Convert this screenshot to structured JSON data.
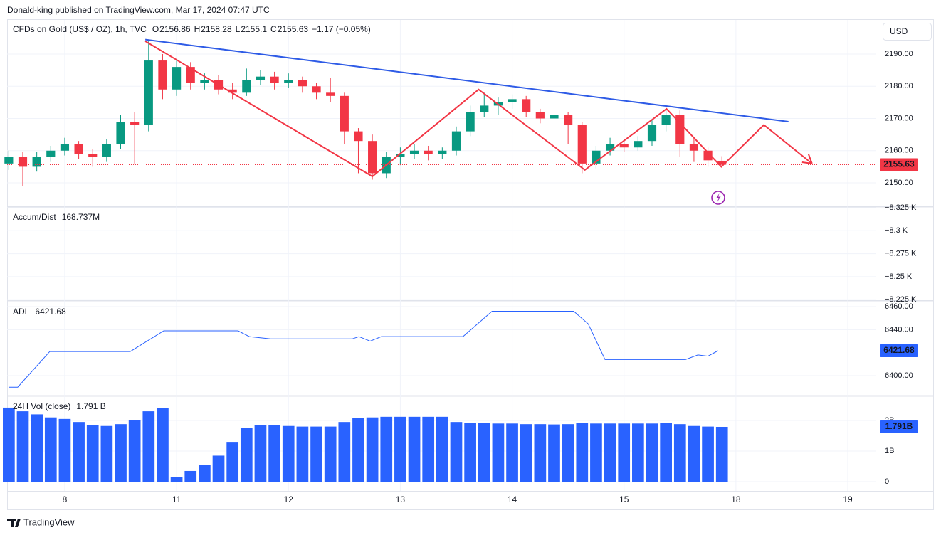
{
  "header": {
    "publisher": "Donald-king published on TradingView.com, Mar 17, 2024 07:47 UTC"
  },
  "footer": {
    "brand": "TradingView"
  },
  "chart_data": [
    {
      "type": "candlestick",
      "title": "CFDs on Gold (US$ / OZ), 1h, TVC",
      "ohlc_labels": [
        "O",
        "H",
        "L",
        "C"
      ],
      "change_label": "−1.17 (−0.05%)",
      "currency": "USD",
      "up_color": "#089981",
      "down_color": "#f23645",
      "x": [
        -0.5,
        -0.375,
        -0.25,
        -0.125,
        0,
        0.125,
        0.25,
        0.375,
        0.5,
        0.625,
        0.75,
        0.875,
        1,
        1.125,
        1.25,
        1.375,
        1.5,
        1.625,
        1.75,
        1.875,
        2,
        2.125,
        2.25,
        2.375,
        2.5,
        2.625,
        2.75,
        2.875,
        3,
        3.125,
        3.25,
        3.375,
        3.5,
        3.625,
        3.75,
        3.875,
        4,
        4.125,
        4.25,
        4.375,
        4.5,
        4.625,
        4.75,
        4.875,
        5,
        5.125,
        5.25,
        5.375,
        5.5,
        5.625,
        5.75,
        5.875
      ],
      "open": [
        2156,
        2158,
        2155,
        2158,
        2160,
        2162,
        2159,
        2158,
        2162,
        2169,
        2168,
        2188,
        2179,
        2186,
        2181,
        2182,
        2179,
        2178,
        2182,
        2183,
        2181,
        2182,
        2180,
        2178,
        2177,
        2166,
        2163,
        2153,
        2158,
        2159,
        2160,
        2159,
        2160,
        2166,
        2172,
        2174,
        2175,
        2176,
        2172,
        2170,
        2171,
        2168,
        2156,
        2160,
        2162,
        2161,
        2163,
        2168,
        2171,
        2162,
        2160,
        2156.86
      ],
      "high": [
        2160,
        2159.5,
        2159.5,
        2161.5,
        2164,
        2163,
        2160.5,
        2163.5,
        2171,
        2172,
        2194,
        2190,
        2188.5,
        2187.5,
        2184,
        2183.5,
        2181,
        2185.5,
        2185,
        2184.5,
        2184,
        2183,
        2181,
        2182.5,
        2178,
        2167,
        2165,
        2159.5,
        2161,
        2162,
        2161.5,
        2161,
        2167.5,
        2174,
        2178,
        2176.5,
        2177.5,
        2177,
        2173,
        2172.5,
        2172,
        2169,
        2161.5,
        2164,
        2163.5,
        2164.5,
        2169.5,
        2173,
        2172.5,
        2164,
        2161,
        2158.28
      ],
      "low": [
        2154,
        2149,
        2153.5,
        2156.5,
        2158.5,
        2157.5,
        2155,
        2156.5,
        2160.5,
        2156,
        2166,
        2176,
        2177,
        2179,
        2179,
        2177.5,
        2176,
        2177,
        2180.5,
        2179,
        2179.5,
        2178,
        2176,
        2175,
        2162,
        2153,
        2151,
        2151.5,
        2155.5,
        2157.5,
        2157,
        2157.5,
        2158.5,
        2164.5,
        2170.5,
        2171,
        2173,
        2170.5,
        2168.5,
        2168.5,
        2162,
        2153,
        2154.5,
        2158.5,
        2159.5,
        2160,
        2161.5,
        2166,
        2158,
        2156.5,
        2155,
        2155.1
      ],
      "close": [
        2158,
        2155,
        2158,
        2160,
        2162,
        2159,
        2158,
        2162,
        2169,
        2168,
        2188,
        2179,
        2186,
        2181,
        2182,
        2179,
        2178,
        2182,
        2183,
        2181,
        2182,
        2180,
        2178,
        2177,
        2166,
        2163,
        2153,
        2158,
        2159,
        2160,
        2159,
        2160,
        2166,
        2172,
        2174,
        2175,
        2176,
        2172,
        2170,
        2171,
        2168,
        2156,
        2160,
        2162,
        2161,
        2163,
        2168,
        2171,
        2162,
        2160,
        2157,
        2155.63
      ],
      "trendline": {
        "color": "#2e5be6",
        "x": [
          0.72,
          6.47
        ],
        "y": [
          2194.5,
          2169
        ]
      },
      "zigzag": {
        "color": "#f23645",
        "x": [
          0.72,
          2.75,
          3.7,
          4.65,
          5.38,
          5.87,
          6.25,
          6.68
        ],
        "y": [
          2194,
          2152,
          2179,
          2154,
          2173,
          2155,
          2168,
          2156
        ]
      },
      "xlim": [
        -0.515,
        7.248
      ],
      "xticks": [
        {
          "value": 0,
          "label": "8"
        },
        {
          "value": 1,
          "label": "11"
        },
        {
          "value": 2,
          "label": "12"
        },
        {
          "value": 3,
          "label": "13"
        },
        {
          "value": 4,
          "label": "14"
        },
        {
          "value": 5,
          "label": "15"
        },
        {
          "value": 6,
          "label": "18"
        },
        {
          "value": 7,
          "label": "19"
        }
      ],
      "ylim": [
        2142.71,
        2200.83
      ],
      "yticks": [
        {
          "value": 2150,
          "label": "2150.00"
        },
        {
          "value": 2160,
          "label": "2160.00"
        },
        {
          "value": 2170,
          "label": "2170.00"
        },
        {
          "value": 2180,
          "label": "2180.00"
        },
        {
          "value": 2190,
          "label": "2190.00"
        }
      ],
      "grid": true
    },
    {
      "type": "line",
      "name": "Accum/Dist",
      "legend_value_label": "168.737M",
      "color": "#a39500",
      "ylim": [
        -8224.4,
        -8326.5
      ],
      "yticks": [
        {
          "value": -8325,
          "label": "−8.325 K"
        },
        {
          "value": -8300,
          "label": "−8.3 K"
        },
        {
          "value": -8275,
          "label": "−8.275 K"
        },
        {
          "value": -8250,
          "label": "−8.25 K"
        },
        {
          "value": -8225,
          "label": "−8.225 K"
        }
      ],
      "grid": true
    },
    {
      "type": "line",
      "name": "ADL",
      "color": "#2962ff",
      "x": [
        -0.5,
        -0.42,
        -0.134,
        0.586,
        0.885,
        1.55,
        1.65,
        1.84,
        2.57,
        2.63,
        2.73,
        2.83,
        3.56,
        3.82,
        4.55,
        4.68,
        4.83,
        5.55,
        5.66,
        5.75,
        5.84
      ],
      "values": [
        6390,
        6390,
        6421,
        6421,
        6439,
        6439,
        6434,
        6432,
        6432,
        6434,
        6430,
        6434,
        6434,
        6456,
        6456,
        6445,
        6414,
        6414,
        6418,
        6417,
        6421.68
      ],
      "ylim": [
        6382.7,
        6465.6
      ],
      "yticks": [
        {
          "value": 6400,
          "label": "6400.00"
        },
        {
          "value": 6440,
          "label": "6440.00"
        },
        {
          "value": 6460,
          "label": "6460.00"
        }
      ],
      "grid": true
    },
    {
      "type": "bar",
      "name": "24H Vol (close)",
      "legend_value_label": "1.791 B",
      "last_value_label": "1.791B",
      "color": "#2962ff",
      "x": [
        -0.5,
        -0.375,
        -0.25,
        -0.125,
        0,
        0.125,
        0.25,
        0.375,
        0.5,
        0.625,
        0.75,
        0.875,
        1,
        1.125,
        1.25,
        1.375,
        1.5,
        1.625,
        1.75,
        1.875,
        2,
        2.125,
        2.25,
        2.375,
        2.5,
        2.625,
        2.75,
        2.875,
        3,
        3.125,
        3.25,
        3.375,
        3.5,
        3.625,
        3.75,
        3.875,
        4,
        4.125,
        4.25,
        4.375,
        4.5,
        4.625,
        4.75,
        4.875,
        5,
        5.125,
        5.25,
        5.375,
        5.5,
        5.625,
        5.75,
        5.875
      ],
      "values": [
        2.42,
        2.3,
        2.2,
        2.1,
        2.05,
        1.95,
        1.85,
        1.82,
        1.88,
        2.0,
        2.3,
        2.4,
        0.15,
        0.35,
        0.55,
        0.85,
        1.3,
        1.75,
        1.85,
        1.85,
        1.82,
        1.8,
        1.8,
        1.8,
        1.95,
        2.08,
        2.1,
        2.12,
        2.12,
        2.12,
        2.12,
        2.12,
        1.95,
        1.93,
        1.92,
        1.9,
        1.9,
        1.88,
        1.88,
        1.87,
        1.88,
        1.92,
        1.9,
        1.9,
        1.9,
        1.9,
        1.9,
        1.93,
        1.88,
        1.82,
        1.8,
        1.791
      ],
      "ylim": [
        -0.302,
        2.814
      ],
      "yticks": [
        0,
        {
          "value": 1,
          "label": "1B"
        },
        {
          "value": 2,
          "label": "2B"
        }
      ],
      "grid": true
    }
  ]
}
